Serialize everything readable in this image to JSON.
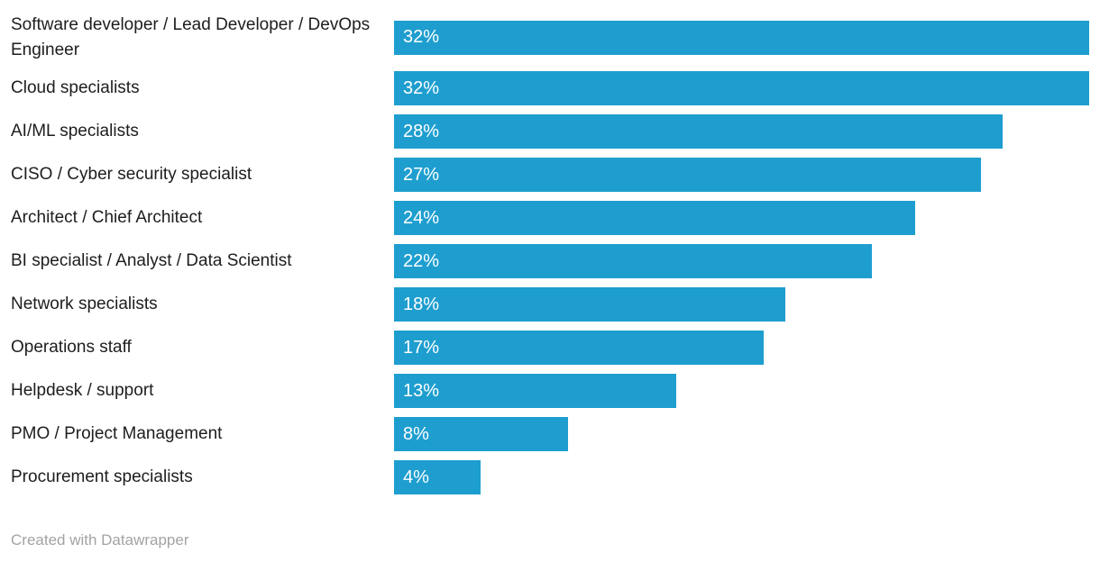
{
  "chart_data": {
    "type": "bar",
    "orientation": "horizontal",
    "title": "",
    "xlabel": "",
    "ylabel": "",
    "xlim": [
      0,
      32
    ],
    "grid": false,
    "legend_position": "none",
    "bar_color": "#1E9ECF",
    "value_suffix": "%",
    "categories": [
      "Software developer / Lead Developer / DevOps Engineer",
      "Cloud specialists",
      "AI/ML specialists",
      "CISO / Cyber security specialist",
      "Architect / Chief Architect",
      "BI specialist / Analyst / Data Scientist",
      "Network specialists",
      "Operations staff",
      "Helpdesk / support",
      "PMO / Project Management",
      "Procurement specialists"
    ],
    "values": [
      32,
      32,
      28,
      27,
      24,
      22,
      18,
      17,
      13,
      8,
      4
    ],
    "value_labels": [
      "32%",
      "32%",
      "28%",
      "27%",
      "24%",
      "22%",
      "18%",
      "17%",
      "13%",
      "8%",
      "4%"
    ]
  },
  "footer": {
    "attribution": "Created with Datawrapper"
  }
}
